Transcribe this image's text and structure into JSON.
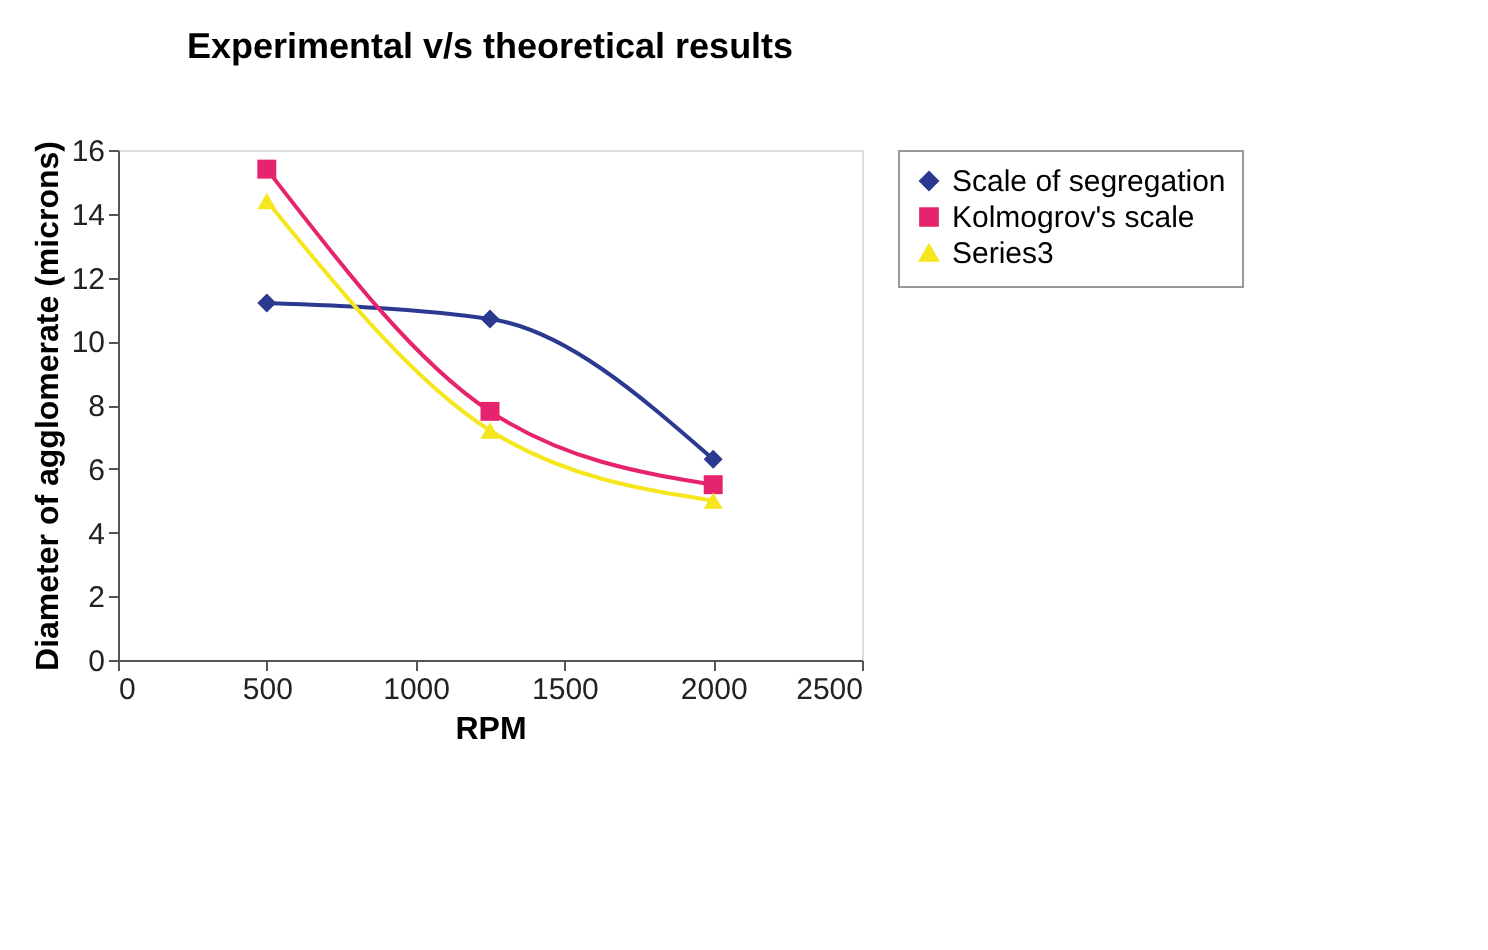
{
  "chart_data": {
    "type": "line",
    "title": "Experimental v/s theoretical results",
    "xlabel": "RPM",
    "ylabel": "Diameter of agglomerate (microns)",
    "x": [
      500,
      1250,
      2000
    ],
    "series": [
      {
        "name": "Scale of segregation",
        "color": "#2b3990",
        "marker": "diamond",
        "values": [
          11.2,
          10.7,
          6.3
        ]
      },
      {
        "name": "Kolmogrov's scale",
        "color": "#e6246e",
        "marker": "square",
        "values": [
          15.4,
          7.8,
          5.5
        ]
      },
      {
        "name": "Series3",
        "color": "#f5e61e",
        "marker": "triangle",
        "values": [
          14.4,
          7.2,
          5.0
        ]
      }
    ],
    "xlim": [
      0,
      2500
    ],
    "xticks": [
      0,
      500,
      1000,
      1500,
      2000,
      2500
    ],
    "ylim": [
      0,
      16
    ],
    "yticks": [
      0,
      2,
      4,
      6,
      8,
      10,
      12,
      14,
      16
    ],
    "grid": false,
    "legend": "right"
  }
}
